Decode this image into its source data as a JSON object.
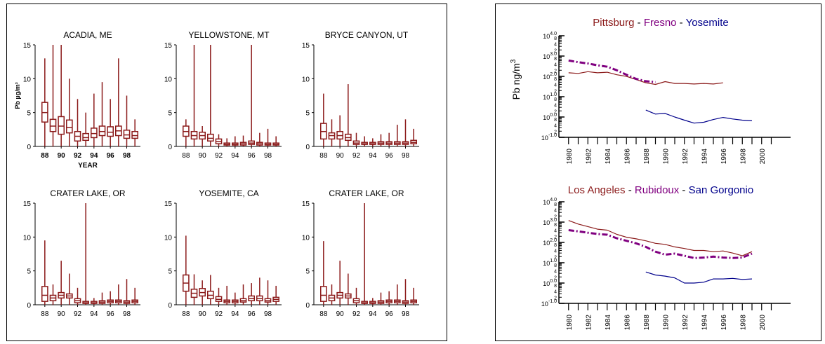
{
  "chart_data": [
    {
      "type": "box",
      "title": "ACADIA, ME",
      "ylabel": "Pb µg/m³",
      "xlabel": "YEAR",
      "ylim": [
        0,
        15
      ],
      "yticks": [
        "0",
        "5",
        "10",
        "15"
      ],
      "xticks": [
        "88",
        "90",
        "92",
        "94",
        "96",
        "98"
      ],
      "years": [
        1988,
        1989,
        1990,
        1991,
        1992,
        1993,
        1994,
        1995,
        1996,
        1997,
        1998,
        1999
      ],
      "boxes": [
        {
          "min": 0,
          "q1": 3.6,
          "med": 5.0,
          "q3": 6.5,
          "max": 13.0
        },
        {
          "min": 0,
          "q1": 2.2,
          "med": 3.0,
          "q3": 4.0,
          "max": 15.0
        },
        {
          "min": 0,
          "q1": 1.8,
          "med": 3.0,
          "q3": 4.4,
          "max": 15.0
        },
        {
          "min": 0,
          "q1": 2.0,
          "med": 2.8,
          "q3": 3.9,
          "max": 10.0
        },
        {
          "min": 0,
          "q1": 0.8,
          "med": 1.5,
          "q3": 2.2,
          "max": 7.0
        },
        {
          "min": 0,
          "q1": 0.9,
          "med": 1.3,
          "q3": 1.9,
          "max": 5.0
        },
        {
          "min": 0,
          "q1": 1.3,
          "med": 1.9,
          "q3": 2.7,
          "max": 7.8
        },
        {
          "min": 0,
          "q1": 1.6,
          "med": 2.2,
          "q3": 3.0,
          "max": 9.5
        },
        {
          "min": 0,
          "q1": 1.5,
          "med": 2.1,
          "q3": 2.9,
          "max": 7.0
        },
        {
          "min": 0,
          "q1": 1.6,
          "med": 2.3,
          "q3": 3.0,
          "max": 13.0
        },
        {
          "min": 0,
          "q1": 1.2,
          "med": 1.7,
          "q3": 2.4,
          "max": 7.5
        },
        {
          "min": 0,
          "q1": 1.2,
          "med": 1.6,
          "q3": 2.2,
          "max": 4.0
        }
      ]
    },
    {
      "type": "box",
      "title": "YELLOWSTONE, MT",
      "ylim": [
        0,
        15
      ],
      "yticks": [
        "0",
        "5",
        "10",
        "15"
      ],
      "xticks": [
        "88",
        "90",
        "92",
        "94",
        "96",
        "98"
      ],
      "years": [
        1988,
        1989,
        1990,
        1991,
        1992,
        1993,
        1994,
        1995,
        1996,
        1997,
        1998,
        1999
      ],
      "boxes": [
        {
          "min": 0,
          "q1": 1.5,
          "med": 2.2,
          "q3": 3.0,
          "max": 4.0
        },
        {
          "min": 0,
          "q1": 1.1,
          "med": 1.6,
          "q3": 2.2,
          "max": 15.0
        },
        {
          "min": 0,
          "q1": 1.1,
          "med": 1.6,
          "q3": 2.1,
          "max": 3.0
        },
        {
          "min": 0,
          "q1": 0.8,
          "med": 1.2,
          "q3": 1.8,
          "max": 15.0
        },
        {
          "min": 0,
          "q1": 0.4,
          "med": 0.7,
          "q3": 1.1,
          "max": 1.8
        },
        {
          "min": 0,
          "q1": 0.2,
          "med": 0.3,
          "q3": 0.5,
          "max": 1.2
        },
        {
          "min": 0,
          "q1": 0.2,
          "med": 0.3,
          "q3": 0.5,
          "max": 1.5
        },
        {
          "min": 0,
          "q1": 0.2,
          "med": 0.4,
          "q3": 0.6,
          "max": 1.6
        },
        {
          "min": 0,
          "q1": 0.3,
          "med": 0.5,
          "q3": 0.8,
          "max": 15.0
        },
        {
          "min": 0,
          "q1": 0.2,
          "med": 0.4,
          "q3": 0.6,
          "max": 2.0
        },
        {
          "min": 0,
          "q1": 0.2,
          "med": 0.3,
          "q3": 0.5,
          "max": 2.6
        },
        {
          "min": 0,
          "q1": 0.2,
          "med": 0.3,
          "q3": 0.5,
          "max": 1.5
        }
      ]
    },
    {
      "type": "box",
      "title": "BRYCE CANYON, UT",
      "ylim": [
        0,
        15
      ],
      "yticks": [
        "0",
        "5",
        "10",
        "15"
      ],
      "xticks": [
        "88",
        "90",
        "92",
        "94",
        "96",
        "98"
      ],
      "years": [
        1988,
        1989,
        1990,
        1991,
        1992,
        1993,
        1994,
        1995,
        1996,
        1997,
        1998,
        1999
      ],
      "boxes": [
        {
          "min": 0,
          "q1": 1.1,
          "med": 2.2,
          "q3": 3.4,
          "max": 7.8
        },
        {
          "min": 0,
          "q1": 1.1,
          "med": 1.6,
          "q3": 2.0,
          "max": 4.0
        },
        {
          "min": 0,
          "q1": 1.1,
          "med": 1.6,
          "q3": 2.2,
          "max": 4.6
        },
        {
          "min": 0,
          "q1": 0.9,
          "med": 1.3,
          "q3": 1.8,
          "max": 9.2
        },
        {
          "min": 0,
          "q1": 0.3,
          "med": 0.5,
          "q3": 0.8,
          "max": 2.0
        },
        {
          "min": 0,
          "q1": 0.3,
          "med": 0.4,
          "q3": 0.6,
          "max": 1.5
        },
        {
          "min": 0,
          "q1": 0.3,
          "med": 0.4,
          "q3": 0.6,
          "max": 1.2
        },
        {
          "min": 0,
          "q1": 0.3,
          "med": 0.5,
          "q3": 0.7,
          "max": 1.8
        },
        {
          "min": 0,
          "q1": 0.3,
          "med": 0.5,
          "q3": 0.7,
          "max": 2.0
        },
        {
          "min": 0,
          "q1": 0.3,
          "med": 0.5,
          "q3": 0.7,
          "max": 3.2
        },
        {
          "min": 0,
          "q1": 0.3,
          "med": 0.5,
          "q3": 0.7,
          "max": 4.0
        },
        {
          "min": 0,
          "q1": 0.4,
          "med": 0.6,
          "q3": 0.9,
          "max": 2.6
        }
      ]
    },
    {
      "type": "box",
      "title": "CRATER LAKE, OR",
      "ylim": [
        0,
        15
      ],
      "yticks": [
        "0",
        "5",
        "10",
        "15"
      ],
      "xticks": [
        "88",
        "90",
        "92",
        "94",
        "96",
        "98"
      ],
      "years": [
        1988,
        1989,
        1990,
        1991,
        1992,
        1993,
        1994,
        1995,
        1996,
        1997,
        1998,
        1999
      ],
      "boxes": [
        {
          "min": 0,
          "q1": 0.5,
          "med": 1.4,
          "q3": 2.7,
          "max": 9.5
        },
        {
          "min": 0,
          "q1": 0.6,
          "med": 1.0,
          "q3": 1.4,
          "max": 3.0
        },
        {
          "min": 0,
          "q1": 1.0,
          "med": 1.4,
          "q3": 1.8,
          "max": 6.5
        },
        {
          "min": 0,
          "q1": 1.0,
          "med": 1.3,
          "q3": 1.6,
          "max": 4.6
        },
        {
          "min": 0,
          "q1": 0.3,
          "med": 0.6,
          "q3": 0.9,
          "max": 2.5
        },
        {
          "min": 0,
          "q1": 0.2,
          "med": 0.3,
          "q3": 0.5,
          "max": 15.0
        },
        {
          "min": 0,
          "q1": 0.2,
          "med": 0.3,
          "q3": 0.5,
          "max": 1.0
        },
        {
          "min": 0,
          "q1": 0.2,
          "med": 0.4,
          "q3": 0.6,
          "max": 1.8
        },
        {
          "min": 0,
          "q1": 0.3,
          "med": 0.5,
          "q3": 0.7,
          "max": 2.0
        },
        {
          "min": 0,
          "q1": 0.3,
          "med": 0.5,
          "q3": 0.7,
          "max": 3.0
        },
        {
          "min": 0,
          "q1": 0.2,
          "med": 0.4,
          "q3": 0.6,
          "max": 3.8
        },
        {
          "min": 0,
          "q1": 0.3,
          "med": 0.5,
          "q3": 0.7,
          "max": 2.5
        }
      ]
    },
    {
      "type": "box",
      "title": "YOSEMITE, CA",
      "ylim": [
        0,
        15
      ],
      "yticks": [
        "0",
        "5",
        "10",
        "15"
      ],
      "xticks": [
        "88",
        "90",
        "92",
        "94",
        "96",
        "98"
      ],
      "years": [
        1988,
        1989,
        1990,
        1991,
        1992,
        1993,
        1994,
        1995,
        1996,
        1997,
        1998,
        1999
      ],
      "boxes": [
        {
          "min": 0,
          "q1": 2.0,
          "med": 3.2,
          "q3": 4.4,
          "max": 10.2
        },
        {
          "min": 0,
          "q1": 1.1,
          "med": 1.7,
          "q3": 2.3,
          "max": 4.5
        },
        {
          "min": 0,
          "q1": 1.3,
          "med": 1.8,
          "q3": 2.4,
          "max": 3.6
        },
        {
          "min": 0,
          "q1": 0.9,
          "med": 1.4,
          "q3": 2.0,
          "max": 4.4
        },
        {
          "min": 0,
          "q1": 0.5,
          "med": 0.8,
          "q3": 1.2,
          "max": 2.5
        },
        {
          "min": 0,
          "q1": 0.3,
          "med": 0.5,
          "q3": 0.7,
          "max": 2.8
        },
        {
          "min": 0,
          "q1": 0.3,
          "med": 0.5,
          "q3": 0.7,
          "max": 1.8
        },
        {
          "min": 0,
          "q1": 0.4,
          "med": 0.6,
          "q3": 0.9,
          "max": 3.0
        },
        {
          "min": 0,
          "q1": 0.6,
          "med": 0.9,
          "q3": 1.3,
          "max": 3.2
        },
        {
          "min": 0,
          "q1": 0.6,
          "med": 0.9,
          "q3": 1.3,
          "max": 4.0
        },
        {
          "min": 0,
          "q1": 0.4,
          "med": 0.6,
          "q3": 0.9,
          "max": 3.6
        },
        {
          "min": 0,
          "q1": 0.5,
          "med": 0.8,
          "q3": 1.1,
          "max": 2.8
        }
      ]
    },
    {
      "type": "box",
      "title": "CRATER LAKE, OR",
      "ylim": [
        0,
        15
      ],
      "yticks": [
        "0",
        "5",
        "10",
        "15"
      ],
      "xticks": [
        "88",
        "90",
        "92",
        "94",
        "96",
        "98"
      ],
      "years": [
        1988,
        1989,
        1990,
        1991,
        1992,
        1993,
        1994,
        1995,
        1996,
        1997,
        1998,
        1999
      ],
      "boxes": [
        {
          "min": 0,
          "q1": 0.5,
          "med": 1.4,
          "q3": 2.7,
          "max": 9.4
        },
        {
          "min": 0,
          "q1": 0.6,
          "med": 1.0,
          "q3": 1.4,
          "max": 3.0
        },
        {
          "min": 0,
          "q1": 1.0,
          "med": 1.4,
          "q3": 1.8,
          "max": 6.5
        },
        {
          "min": 0,
          "q1": 1.0,
          "med": 1.3,
          "q3": 1.6,
          "max": 4.6
        },
        {
          "min": 0,
          "q1": 0.3,
          "med": 0.6,
          "q3": 0.9,
          "max": 2.5
        },
        {
          "min": 0,
          "q1": 0.2,
          "med": 0.3,
          "q3": 0.5,
          "max": 15.0
        },
        {
          "min": 0,
          "q1": 0.2,
          "med": 0.3,
          "q3": 0.5,
          "max": 1.0
        },
        {
          "min": 0,
          "q1": 0.2,
          "med": 0.4,
          "q3": 0.6,
          "max": 1.8
        },
        {
          "min": 0,
          "q1": 0.3,
          "med": 0.5,
          "q3": 0.7,
          "max": 2.0
        },
        {
          "min": 0,
          "q1": 0.3,
          "med": 0.5,
          "q3": 0.7,
          "max": 3.0
        },
        {
          "min": 0,
          "q1": 0.2,
          "med": 0.4,
          "q3": 0.6,
          "max": 3.8
        },
        {
          "min": 0,
          "q1": 0.3,
          "med": 0.5,
          "q3": 0.7,
          "max": 2.5
        }
      ]
    },
    {
      "type": "line",
      "title_parts": [
        {
          "text": "Pittsburg",
          "color": "#8b1a1a"
        },
        {
          "text": " - ",
          "color": "#000000"
        },
        {
          "text": "Fresno",
          "color": "#800080"
        },
        {
          "text": " - ",
          "color": "#000000"
        },
        {
          "text": "Yosemite",
          "color": "#00008b"
        }
      ],
      "ylabel": "Pb  ng/m3",
      "ylog": true,
      "ylim": [
        0.1,
        10000
      ],
      "yticks": [
        "10-1.0",
        "100.0",
        "101.0",
        "102.0",
        "103.0",
        "104.0"
      ],
      "xticks": [
        "1980",
        "1982",
        "1984",
        "1986",
        "1988",
        "1990",
        "1992",
        "1994",
        "1996",
        "1998",
        "2000"
      ],
      "series": [
        {
          "name": "Pittsburg",
          "color": "#8b1a1a",
          "style": "solid",
          "x": [
            1980,
            1981,
            1982,
            1983,
            1984,
            1985,
            1986,
            1987,
            1988,
            1989,
            1990,
            1991,
            1992,
            1993,
            1994,
            1995,
            1996
          ],
          "y": [
            150,
            140,
            170,
            150,
            160,
            120,
            100,
            70,
            48,
            40,
            55,
            45,
            45,
            42,
            45,
            42,
            48
          ]
        },
        {
          "name": "Fresno",
          "color": "#800080",
          "style": "dashdot",
          "x": [
            1980,
            1981,
            1982,
            1983,
            1984,
            1985,
            1986,
            1987,
            1988,
            1989
          ],
          "y": [
            600,
            500,
            430,
            350,
            300,
            200,
            120,
            75,
            58,
            52
          ]
        },
        {
          "name": "Yosemite",
          "color": "#00008b",
          "style": "solid",
          "x": [
            1988,
            1989,
            1990,
            1991,
            1992,
            1993,
            1994,
            1995,
            1996,
            1997,
            1998,
            1999
          ],
          "y": [
            2.2,
            1.4,
            1.5,
            1.0,
            0.7,
            0.5,
            0.55,
            0.75,
            0.95,
            0.8,
            0.7,
            0.65
          ]
        }
      ]
    },
    {
      "type": "line",
      "title_parts": [
        {
          "text": "Los Angeles",
          "color": "#8b1a1a"
        },
        {
          "text": " - ",
          "color": "#000000"
        },
        {
          "text": "Rubidoux",
          "color": "#800080"
        },
        {
          "text": " - ",
          "color": "#000000"
        },
        {
          "text": "San Gorgonio",
          "color": "#00008b"
        }
      ],
      "ylog": true,
      "ylim": [
        0.1,
        10000
      ],
      "yticks": [
        "10-1.0",
        "100.0",
        "101.0",
        "102.0",
        "103.0",
        "104.0"
      ],
      "xticks": [
        "1980",
        "1982",
        "1984",
        "1986",
        "1988",
        "1990",
        "1992",
        "1994",
        "1996",
        "1998",
        "2000"
      ],
      "series": [
        {
          "name": "Los Angeles",
          "color": "#8b1a1a",
          "style": "solid",
          "x": [
            1980,
            1981,
            1982,
            1983,
            1984,
            1985,
            1986,
            1987,
            1988,
            1989,
            1990,
            1991,
            1992,
            1993,
            1994,
            1995,
            1996,
            1997,
            1998,
            1999
          ],
          "y": [
            1200,
            800,
            600,
            450,
            400,
            250,
            180,
            150,
            120,
            90,
            80,
            60,
            50,
            40,
            40,
            35,
            38,
            30,
            22,
            35
          ]
        },
        {
          "name": "Rubidoux",
          "color": "#800080",
          "style": "dashdot",
          "x": [
            1980,
            1981,
            1982,
            1983,
            1984,
            1985,
            1986,
            1987,
            1988,
            1989,
            1990,
            1991,
            1992,
            1993,
            1994,
            1995,
            1996,
            1997,
            1998,
            1999
          ],
          "y": [
            400,
            350,
            300,
            260,
            240,
            160,
            120,
            90,
            60,
            35,
            25,
            28,
            22,
            17,
            18,
            20,
            18,
            17,
            18,
            28
          ]
        },
        {
          "name": "San Gorgonio",
          "color": "#00008b",
          "style": "solid",
          "x": [
            1988,
            1989,
            1990,
            1991,
            1992,
            1993,
            1994,
            1995,
            1996,
            1997,
            1998,
            1999
          ],
          "y": [
            3.5,
            2.5,
            2.2,
            1.8,
            1.0,
            1.0,
            1.1,
            1.6,
            1.6,
            1.7,
            1.5,
            1.6
          ]
        }
      ]
    }
  ]
}
